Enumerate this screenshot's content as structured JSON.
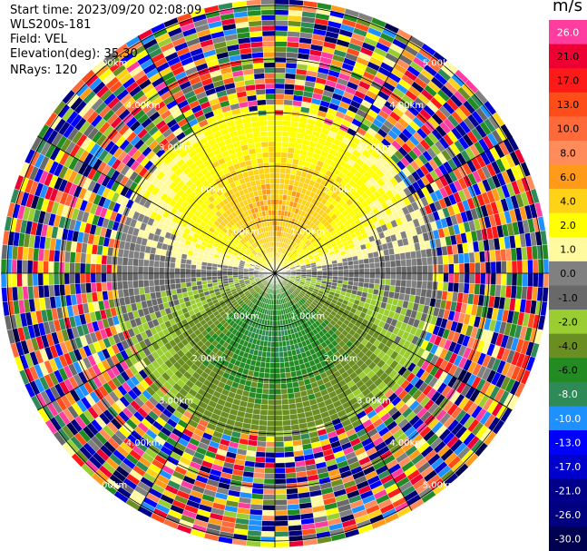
{
  "meta": {
    "start_time": "Start time: 2023/09/20 02:08:09",
    "instrument": "WLS200s-181",
    "field": "Field: VEL",
    "elevation": "Elevation(deg): 35.30",
    "nrays": "NRays: 120"
  },
  "colorbar": {
    "unit": "m/s",
    "entries": [
      {
        "label": "26.0",
        "color": "#ff3da0"
      },
      {
        "label": "21.0",
        "color": "#ee0033"
      },
      {
        "label": "17.0",
        "color": "#ff1a1a"
      },
      {
        "label": "13.0",
        "color": "#ff4d1a"
      },
      {
        "label": "10.0",
        "color": "#ff6a3a"
      },
      {
        "label": "8.0",
        "color": "#ff8c5a"
      },
      {
        "label": "6.0",
        "color": "#ff9a1a"
      },
      {
        "label": "4.0",
        "color": "#ffd21a"
      },
      {
        "label": "2.0",
        "color": "#ffff00"
      },
      {
        "label": "1.0",
        "color": "#fffaa0"
      },
      {
        "label": "0.0",
        "color": "#808080"
      },
      {
        "label": "-1.0",
        "color": "#696969"
      },
      {
        "label": "-2.0",
        "color": "#9acd32"
      },
      {
        "label": "-4.0",
        "color": "#6b8e23"
      },
      {
        "label": "-6.0",
        "color": "#228b22"
      },
      {
        "label": "-8.0",
        "color": "#2e8b57"
      },
      {
        "label": "-10.0",
        "color": "#1e90ff"
      },
      {
        "label": "-13.0",
        "color": "#0000ff"
      },
      {
        "label": "-17.0",
        "color": "#0000cd"
      },
      {
        "label": "-21.0",
        "color": "#00008b"
      },
      {
        "label": "-26.0",
        "color": "#000080"
      },
      {
        "label": "-30.0",
        "color": "#000050"
      }
    ]
  },
  "chart_data": {
    "type": "heatmap",
    "title": "",
    "projection": "polar PPI",
    "field": "VEL",
    "units": "m/s",
    "n_rays": 120,
    "range_rings_km": [
      1.0,
      2.0,
      3.0,
      4.0,
      5.0
    ],
    "ring_labels": [
      "1.00km",
      "2.00km",
      "3.00km",
      "4.00km",
      "5.00km"
    ],
    "azimuth_spokes_deg": [
      0,
      30,
      60,
      90,
      120,
      150,
      180,
      210,
      240,
      270,
      300,
      330
    ],
    "color_scale": [
      26.0,
      21.0,
      17.0,
      13.0,
      10.0,
      8.0,
      6.0,
      4.0,
      2.0,
      1.0,
      0.0,
      -1.0,
      -2.0,
      -4.0,
      -6.0,
      -8.0,
      -10.0,
      -13.0,
      -17.0,
      -21.0,
      -26.0,
      -30.0
    ],
    "max_range_km": 5.1
  }
}
